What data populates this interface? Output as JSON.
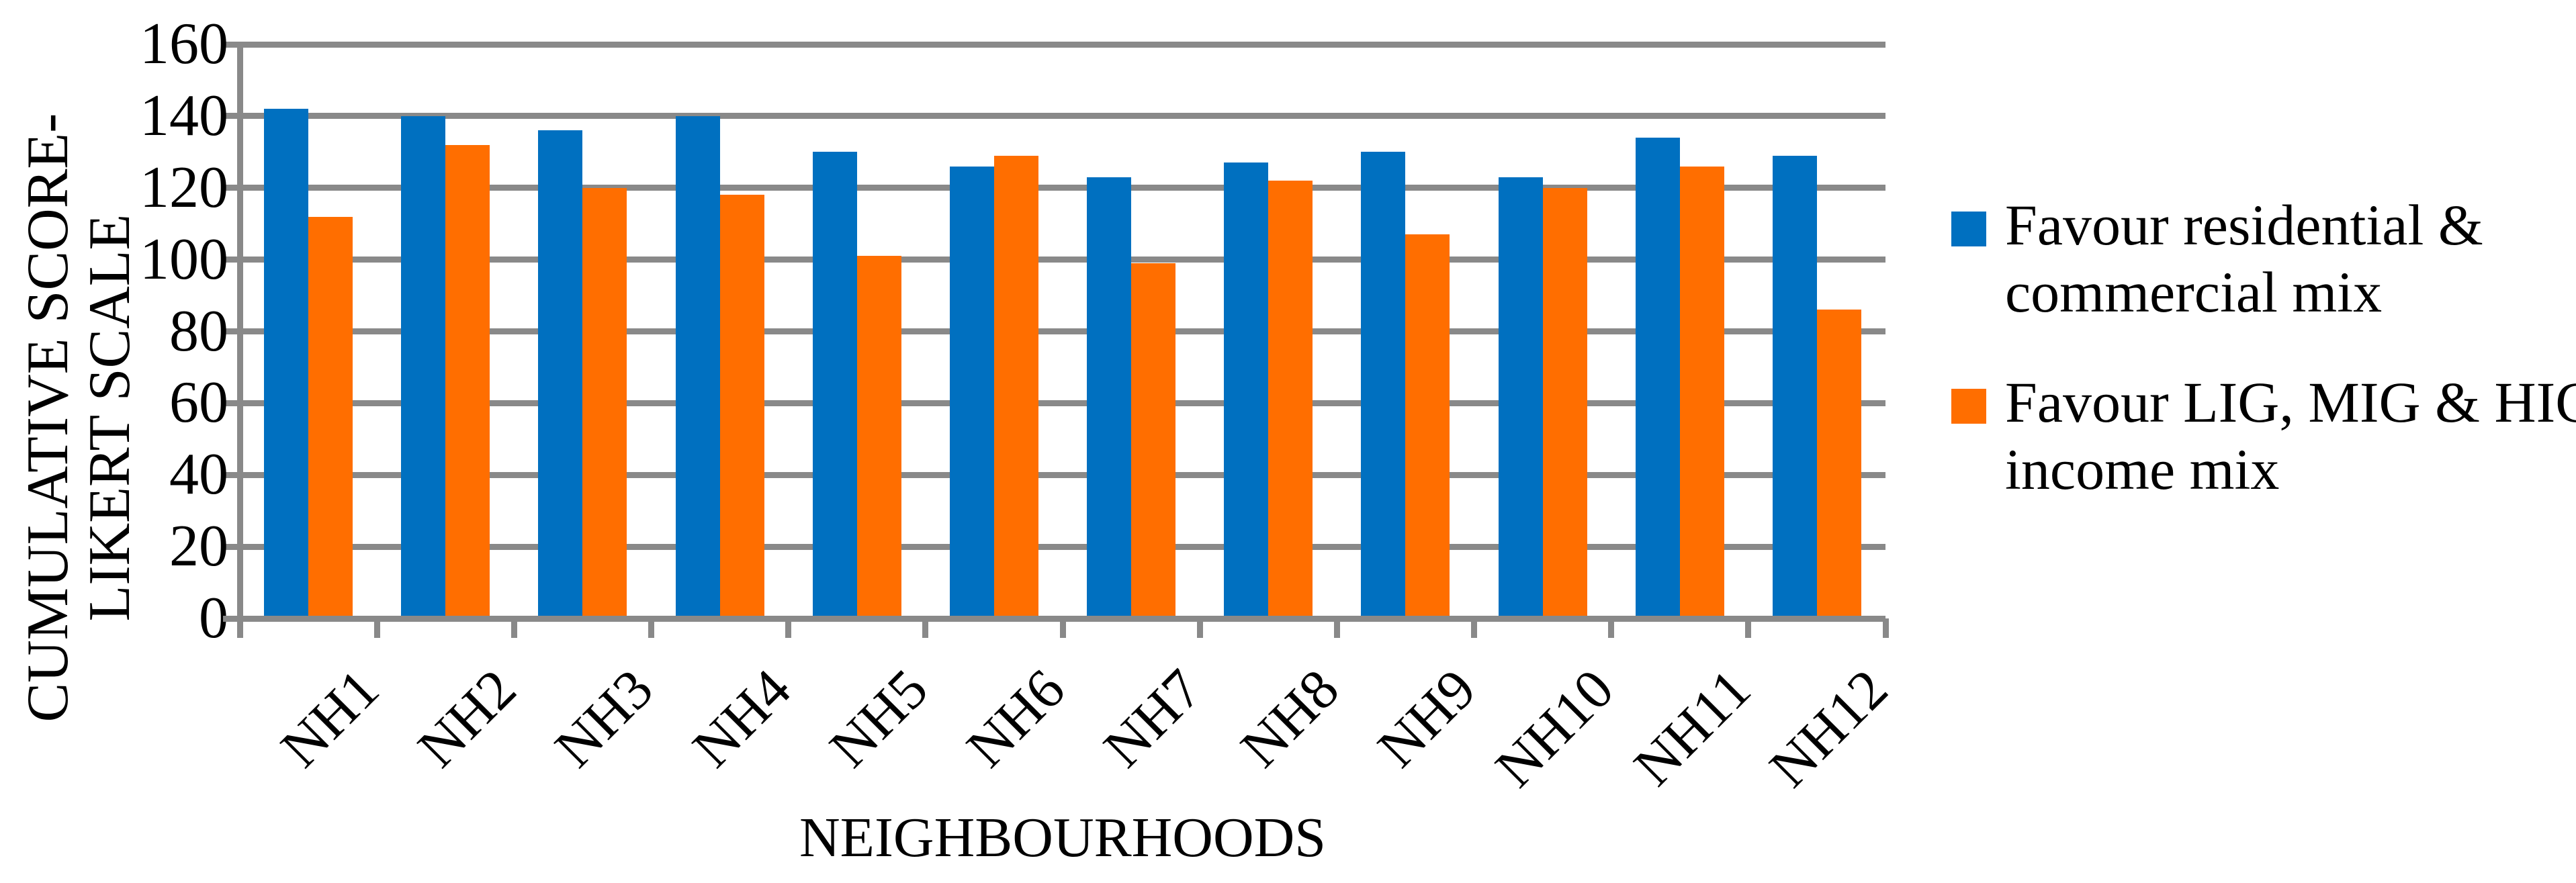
{
  "chart_data": {
    "type": "bar",
    "title": "",
    "categories": [
      "NH1",
      "NH2",
      "NH3",
      "NH4",
      "NH5",
      "NH6",
      "NH7",
      "NH8",
      "NH9",
      "NH10",
      "NH11",
      "NH12"
    ],
    "series": [
      {
        "name": "Favour residential & commercial mix",
        "color": "#0070C0",
        "values": [
          142,
          140,
          136,
          140,
          130,
          126,
          123,
          127,
          130,
          123,
          134,
          129
        ]
      },
      {
        "name": "Favour LIG, MIG & HIG income mix",
        "color": "#FF6E00",
        "values": [
          112,
          132,
          120,
          118,
          101,
          129,
          99,
          122,
          107,
          120,
          126,
          86
        ]
      }
    ],
    "legend_lines": [
      [
        "Favour residential &",
        "commercial mix"
      ],
      [
        "Favour LIG, MIG & HIG",
        "income mix"
      ]
    ],
    "xlabel": "NEIGHBOURHOODS",
    "ylabel": "CUMULATIVE SCORE-LIKERT SCALE",
    "ylabel_lines": [
      "CUMULATIVE SCORE-",
      "LIKERT SCALE"
    ],
    "ylim": [
      0,
      160
    ],
    "ytick_step": 20,
    "grid": true,
    "legend_position": "right",
    "gridline_color": "#898989"
  }
}
